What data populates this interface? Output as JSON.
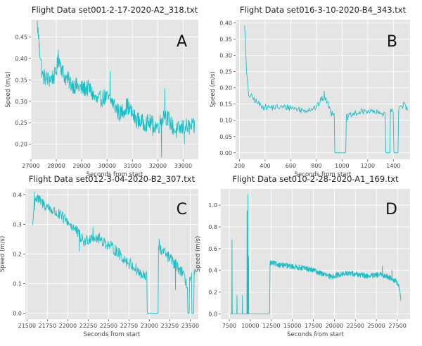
{
  "series_color": "#17bfc4",
  "plot_background": "#e5e5e5",
  "chart_data": [
    {
      "type": "line",
      "letter": "A",
      "title": "Flight Data set001-2-17-2020-A2_318.txt",
      "xlabel": "Seconds from start",
      "ylabel": "Speed (m/s)",
      "xlim": [
        27000,
        33600
      ],
      "ylim": [
        0.165,
        0.49
      ],
      "xticks": [
        27000,
        28000,
        29000,
        30000,
        31000,
        32000,
        33000
      ],
      "yticks": [
        0.2,
        0.25,
        0.3,
        0.35,
        0.4,
        0.45
      ],
      "ytick_labels": [
        "0.20",
        "0.25",
        "0.30",
        "0.35",
        "0.40",
        "0.45"
      ],
      "x_start": 27250,
      "x_end": 33450,
      "keypoints": [
        [
          27250,
          0.48
        ],
        [
          27330,
          0.43
        ],
        [
          27450,
          0.36
        ],
        [
          27700,
          0.35
        ],
        [
          27950,
          0.36
        ],
        [
          28100,
          0.4
        ],
        [
          28300,
          0.36
        ],
        [
          28600,
          0.34
        ],
        [
          29000,
          0.33
        ],
        [
          29300,
          0.33
        ],
        [
          29600,
          0.3
        ],
        [
          29900,
          0.31
        ],
        [
          30200,
          0.3
        ],
        [
          30500,
          0.27
        ],
        [
          30800,
          0.29
        ],
        [
          31100,
          0.26
        ],
        [
          31400,
          0.25
        ],
        [
          31700,
          0.25
        ],
        [
          32000,
          0.24
        ],
        [
          32250,
          0.27
        ],
        [
          32400,
          0.26
        ],
        [
          32700,
          0.23
        ],
        [
          33000,
          0.24
        ],
        [
          33450,
          0.24
        ]
      ],
      "noise": 0.04,
      "samples": 420,
      "events": [
        [
          27330,
          0.435
        ],
        [
          28080,
          0.42
        ],
        [
          30120,
          0.37
        ],
        [
          31800,
          0.22
        ],
        [
          32150,
          0.17
        ],
        [
          32280,
          0.33
        ],
        [
          33050,
          0.2
        ]
      ]
    },
    {
      "type": "line",
      "letter": "B",
      "title": "Flight Data set016-3-10-2020-B4_343.txt",
      "xlabel": "Seconds from start",
      "ylabel": "Speed (m/s)",
      "xlim": [
        170,
        1530
      ],
      "ylim": [
        -0.02,
        0.41
      ],
      "xticks": [
        200,
        400,
        600,
        800,
        1000,
        1200,
        1400
      ],
      "yticks": [
        0.0,
        0.05,
        0.1,
        0.15,
        0.2,
        0.25,
        0.3,
        0.35,
        0.4
      ],
      "ytick_labels": [
        "0.00",
        "0.05",
        "0.10",
        "0.15",
        "0.20",
        "0.25",
        "0.30",
        "0.35",
        "0.40"
      ],
      "x_start": 240,
      "x_end": 1510,
      "keypoints": [
        [
          240,
          0.4
        ],
        [
          255,
          0.25
        ],
        [
          270,
          0.18
        ],
        [
          300,
          0.17
        ],
        [
          350,
          0.15
        ],
        [
          400,
          0.14
        ],
        [
          500,
          0.14
        ],
        [
          600,
          0.14
        ],
        [
          700,
          0.13
        ],
        [
          800,
          0.14
        ],
        [
          850,
          0.17
        ],
        [
          880,
          0.16
        ],
        [
          920,
          0.12
        ],
        [
          940,
          0.13
        ],
        [
          1040,
          0.11
        ],
        [
          1100,
          0.12
        ],
        [
          1200,
          0.13
        ],
        [
          1300,
          0.12
        ],
        [
          1400,
          0.13
        ],
        [
          1460,
          0.14
        ],
        [
          1480,
          0.15
        ],
        [
          1510,
          0.13
        ]
      ],
      "noise": 0.02,
      "samples": 240,
      "zero_gaps": [
        [
          940,
          1030
        ],
        [
          1340,
          1375
        ],
        [
          1400,
          1440
        ]
      ],
      "events": [
        [
          860,
          0.19
        ]
      ]
    },
    {
      "type": "line",
      "letter": "C",
      "title": "Flight Data set012-3-04-2020-B2_307.txt",
      "xlabel": "Seconds from start",
      "ylabel": "Speed (m/s)",
      "xlim": [
        21480,
        23600
      ],
      "ylim": [
        -0.02,
        0.42
      ],
      "xticks": [
        21500,
        21750,
        22000,
        22250,
        22500,
        22750,
        23000,
        23250,
        23500
      ],
      "yticks": [
        0.0,
        0.1,
        0.2,
        0.3,
        0.4
      ],
      "ytick_labels": [
        "0.0",
        "0.1",
        "0.2",
        "0.3",
        "0.4"
      ],
      "x_start": 21570,
      "x_end": 23560,
      "keypoints": [
        [
          21570,
          0.3
        ],
        [
          21600,
          0.39
        ],
        [
          21700,
          0.37
        ],
        [
          21800,
          0.35
        ],
        [
          21900,
          0.33
        ],
        [
          22000,
          0.31
        ],
        [
          22100,
          0.28
        ],
        [
          22200,
          0.24
        ],
        [
          22300,
          0.26
        ],
        [
          22400,
          0.25
        ],
        [
          22500,
          0.23
        ],
        [
          22600,
          0.21
        ],
        [
          22700,
          0.18
        ],
        [
          22800,
          0.16
        ],
        [
          22900,
          0.13
        ],
        [
          22950,
          0.12
        ],
        [
          23100,
          0.22
        ],
        [
          23200,
          0.2
        ],
        [
          23300,
          0.17
        ],
        [
          23400,
          0.14
        ],
        [
          23450,
          0.1
        ],
        [
          23560,
          0.13
        ]
      ],
      "noise": 0.04,
      "samples": 360,
      "zero_gaps": [
        [
          22970,
          23110
        ],
        [
          23470,
          23490
        ],
        [
          23520,
          23545
        ]
      ],
      "events": [
        [
          21590,
          0.41
        ],
        [
          22140,
          0.21
        ],
        [
          22310,
          0.29
        ],
        [
          23120,
          0.25
        ],
        [
          23320,
          0.08
        ]
      ]
    },
    {
      "type": "line",
      "letter": "D",
      "title": "Flight Data set010-2-28-2020-A1_169.txt",
      "xlabel": "Seconds from start",
      "ylabel": "Speed (m/s)",
      "xlim": [
        6500,
        29000
      ],
      "ylim": [
        -0.05,
        1.15
      ],
      "xticks": [
        7500,
        10000,
        12500,
        15000,
        17500,
        20000,
        22500,
        25000,
        27500
      ],
      "yticks": [
        0.0,
        0.2,
        0.4,
        0.6,
        0.8,
        1.0
      ],
      "ytick_labels": [
        "0.0",
        "0.2",
        "0.4",
        "0.6",
        "0.8",
        "1.0"
      ],
      "x_start": 12400,
      "x_end": 27900,
      "keypoints": [
        [
          12400,
          0.47
        ],
        [
          13500,
          0.45
        ],
        [
          14500,
          0.44
        ],
        [
          15500,
          0.43
        ],
        [
          16500,
          0.42
        ],
        [
          17500,
          0.4
        ],
        [
          18500,
          0.37
        ],
        [
          19500,
          0.34
        ],
        [
          20500,
          0.36
        ],
        [
          21500,
          0.37
        ],
        [
          22500,
          0.37
        ],
        [
          23500,
          0.35
        ],
        [
          24500,
          0.35
        ],
        [
          25500,
          0.36
        ],
        [
          26500,
          0.34
        ],
        [
          27300,
          0.3
        ],
        [
          27700,
          0.25
        ],
        [
          27900,
          0.13
        ]
      ],
      "noise": 0.05,
      "samples": 540,
      "events": [
        [
          25700,
          0.44
        ],
        [
          26850,
          0.4
        ]
      ],
      "early_trace": [
        [
          7600,
          0.0
        ],
        [
          7800,
          0.0
        ],
        [
          7830,
          0.68
        ],
        [
          7860,
          0.0
        ],
        [
          8400,
          0.0
        ],
        [
          8420,
          0.17
        ],
        [
          8440,
          0.0
        ],
        [
          9050,
          0.0
        ],
        [
          9070,
          0.17
        ],
        [
          9090,
          0.0
        ],
        [
          9600,
          0.0
        ],
        [
          9620,
          0.95
        ],
        [
          9640,
          0.0
        ],
        [
          9700,
          0.0
        ],
        [
          9720,
          1.1
        ],
        [
          9740,
          0.0
        ],
        [
          9780,
          0.0
        ],
        [
          9800,
          0.53
        ],
        [
          9820,
          0.0
        ],
        [
          12300,
          0.0
        ],
        [
          12350,
          0.47
        ]
      ]
    }
  ]
}
